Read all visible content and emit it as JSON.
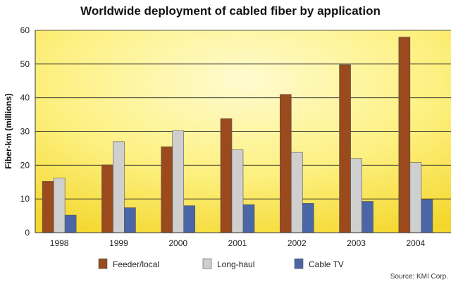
{
  "chart_data": {
    "type": "bar",
    "title": "Worldwide deployment of cabled fiber by application",
    "xlabel": "",
    "ylabel": "Fiber-km (millions)",
    "ylim": [
      0,
      60
    ],
    "yticks": [
      0,
      10,
      20,
      30,
      40,
      50,
      60
    ],
    "grid": true,
    "legend_position": "bottom",
    "categories": [
      "1998",
      "1999",
      "2000",
      "2001",
      "2002",
      "2003",
      "2004"
    ],
    "series": [
      {
        "name": "Feeder/local",
        "color": "#9a4a1c",
        "values": [
          15.2,
          20.1,
          25.5,
          33.8,
          41.0,
          49.8,
          58.0
        ]
      },
      {
        "name": "Long-haul",
        "color": "#cfcfcf",
        "values": [
          16.2,
          27.0,
          30.2,
          24.6,
          23.8,
          22.0,
          20.8
        ]
      },
      {
        "name": "Cable TV",
        "color": "#4a66a6",
        "values": [
          5.2,
          7.4,
          8.0,
          8.3,
          8.7,
          9.3,
          9.8
        ]
      }
    ],
    "source": "Source: KMI Corp."
  }
}
